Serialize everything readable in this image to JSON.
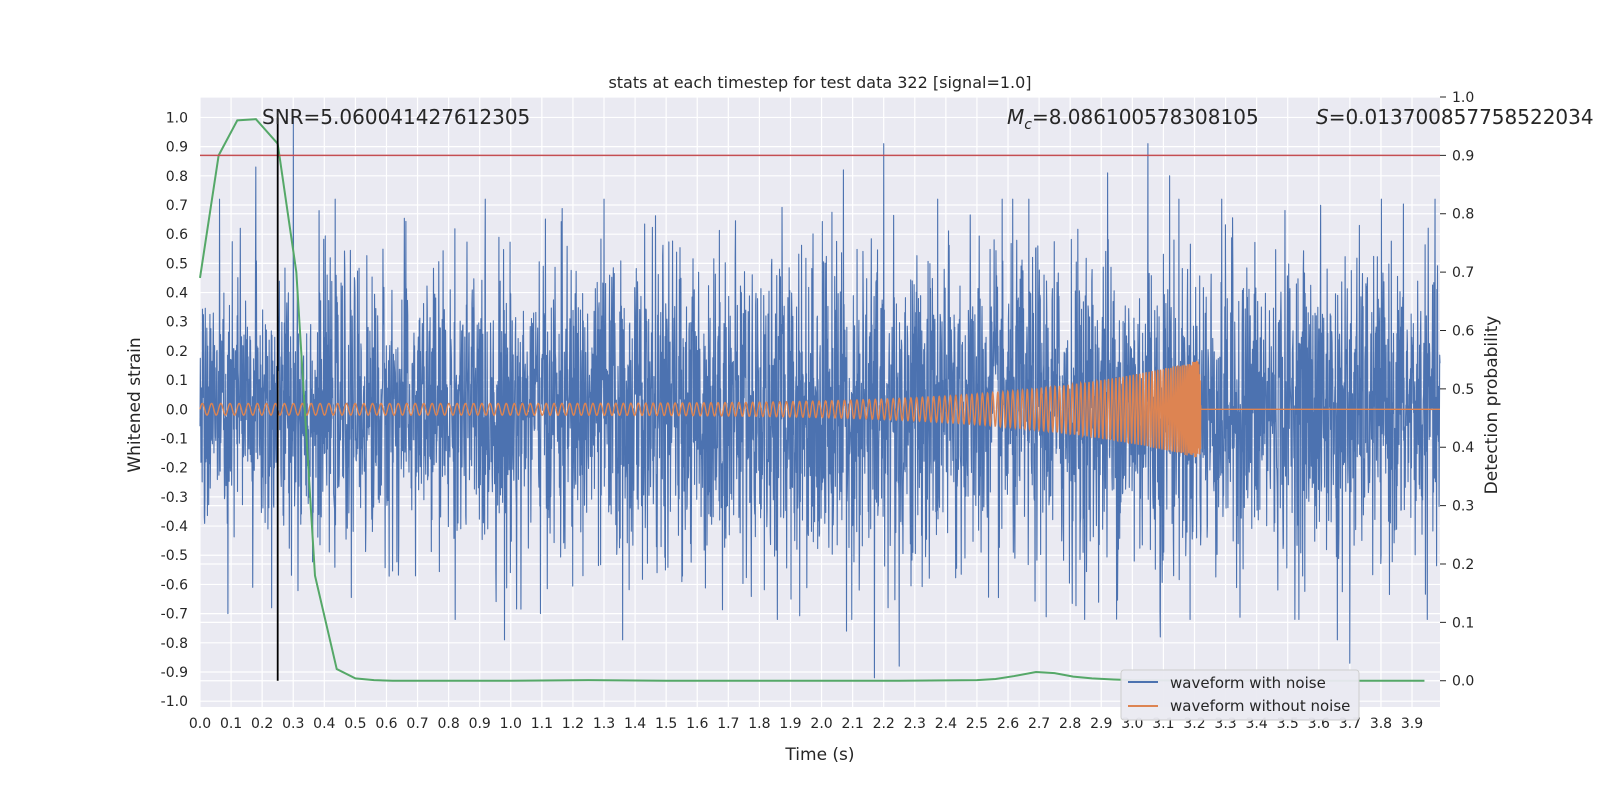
{
  "chart_data": {
    "type": "line",
    "title": "stats at each timestep for test data 322 [signal=1.0]",
    "xlabel": "Time (s)",
    "ylabel_left": "Whitened strain",
    "ylabel_right": "Detection probability",
    "xlim": [
      0.0,
      3.99
    ],
    "ylim_left": [
      -1.02,
      1.07
    ],
    "ylim_right": [
      -0.045,
      1.0
    ],
    "x_ticks": [
      "0.0",
      "0.1",
      "0.2",
      "0.3",
      "0.4",
      "0.5",
      "0.6",
      "0.7",
      "0.8",
      "0.9",
      "1.0",
      "1.1",
      "1.2",
      "1.3",
      "1.4",
      "1.5",
      "1.6",
      "1.7",
      "1.8",
      "1.9",
      "2.0",
      "2.1",
      "2.2",
      "2.3",
      "2.4",
      "2.5",
      "2.6",
      "2.7",
      "2.8",
      "2.9",
      "3.0",
      "3.1",
      "3.2",
      "3.3",
      "3.4",
      "3.5",
      "3.6",
      "3.7",
      "3.8",
      "3.9"
    ],
    "y_ticks_left": [
      "1.0",
      "0.9",
      "0.8",
      "0.7",
      "0.6",
      "0.5",
      "0.4",
      "0.3",
      "0.2",
      "0.1",
      "0.0",
      "-0.1",
      "-0.2",
      "-0.3",
      "-0.4",
      "-0.5",
      "-0.6",
      "-0.7",
      "-0.8",
      "-0.9",
      "-1.0"
    ],
    "y_ticks_right": [
      "1.0",
      "0.9",
      "0.8",
      "0.7",
      "0.6",
      "0.5",
      "0.4",
      "0.3",
      "0.2",
      "0.1",
      "0.0"
    ],
    "grid": true,
    "legend_position": "bottom-right",
    "annotations": {
      "snr": "SNR=5.060041427612305",
      "mc": "=8.086100578308105",
      "mc_symbol": "M",
      "mc_subscript": "c",
      "s": "=0.013700857758522034",
      "s_symbol": "S"
    },
    "threshold_right": 0.9,
    "marker_time": 0.25,
    "series": [
      {
        "name": "waveform with noise",
        "axis": "left",
        "color": "#4c72b0",
        "envelope_times": [
          0.0,
          0.5,
          1.0,
          1.5,
          2.0,
          2.5,
          3.0,
          3.5,
          3.99
        ],
        "envelope_amplitude": [
          0.4,
          0.42,
          0.45,
          0.47,
          0.52,
          0.5,
          0.5,
          0.47,
          0.45
        ],
        "peaks": [
          {
            "x": 0.3,
            "y": 1.0
          },
          {
            "x": 0.18,
            "y": 0.83
          },
          {
            "x": 0.13,
            "y": 0.62
          },
          {
            "x": 0.23,
            "y": -0.68
          },
          {
            "x": 0.09,
            "y": -0.7
          },
          {
            "x": 0.17,
            "y": -0.61
          },
          {
            "x": 0.98,
            "y": -0.79
          },
          {
            "x": 1.36,
            "y": -0.79
          },
          {
            "x": 2.2,
            "y": 0.91
          },
          {
            "x": 2.07,
            "y": 0.82
          },
          {
            "x": 2.17,
            "y": -0.92
          },
          {
            "x": 2.25,
            "y": -0.88
          },
          {
            "x": 3.05,
            "y": 0.91
          },
          {
            "x": 2.92,
            "y": 0.81
          },
          {
            "x": 3.12,
            "y": 0.8
          },
          {
            "x": 3.7,
            "y": -0.87
          },
          {
            "x": 3.66,
            "y": -0.79
          },
          {
            "x": 3.09,
            "y": -0.78
          },
          {
            "x": 2.08,
            "y": -0.76
          },
          {
            "x": 1.3,
            "y": 0.72
          }
        ]
      },
      {
        "name": "waveform without noise",
        "axis": "left",
        "color": "#dd8452",
        "chirp_start_time": 0.0,
        "merger_time": 3.22,
        "amplitude_start": 0.02,
        "amplitude_peak": 0.17,
        "cycles": 160
      },
      {
        "name": "detection probability",
        "axis": "right",
        "color": "#55a868",
        "x": [
          0.0,
          0.06,
          0.12,
          0.18,
          0.25,
          0.31,
          0.37,
          0.44,
          0.5,
          0.56,
          0.62,
          0.75,
          1.0,
          1.25,
          1.5,
          1.75,
          2.0,
          2.25,
          2.5,
          2.56,
          2.62,
          2.69,
          2.75,
          2.81,
          2.87,
          2.94,
          3.0,
          3.25,
          3.5,
          3.75,
          3.94
        ],
        "y": [
          0.69,
          0.9,
          0.96,
          0.962,
          0.92,
          0.7,
          0.18,
          0.02,
          0.004,
          0.001,
          0.0,
          0.0,
          0.0,
          0.001,
          0.0,
          0.0,
          0.0,
          0.0,
          0.001,
          0.003,
          0.008,
          0.015,
          0.013,
          0.007,
          0.004,
          0.002,
          0.001,
          0.0,
          0.0,
          0.0,
          0.0
        ]
      }
    ]
  }
}
